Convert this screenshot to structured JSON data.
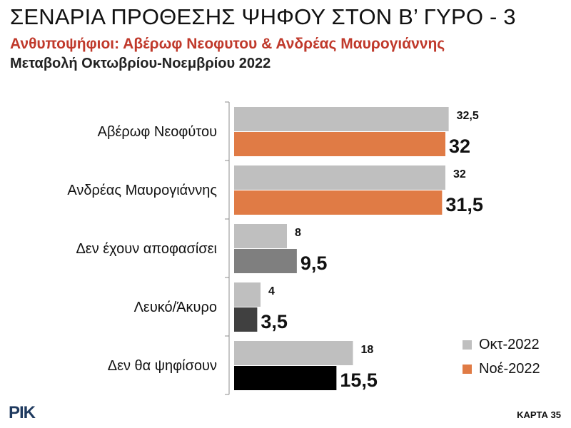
{
  "header": {
    "title": "ΣΕΝΑΡΙΑ ΠΡΟΘΕΣΗΣ ΨΗΦΟΥ ΣΤΟΝ Β’ ΓΥΡΟ - 3",
    "subtitle": "Ανθυποψήφιοι: Αβέρωφ Νεοφυτου & Ανδρέας Μαυρογιάννης",
    "subtitle2": "Μεταβολή Οκτωβρίου-Νοεμβρίου 2022"
  },
  "chart_data": {
    "type": "bar",
    "orientation": "horizontal",
    "categories": [
      "Αβέρωφ Νεοφύτου",
      "Ανδρέας Μαυρογιάννης",
      "Δεν έχουν αποφασίσει",
      "Λευκό/Άκυρο",
      "Δεν θα ψηφίσουν"
    ],
    "series": [
      {
        "name": "Οκτ-2022",
        "values": [
          32.5,
          32,
          8,
          4,
          18
        ],
        "labels": [
          "32,5",
          "32",
          "8",
          "4",
          "18"
        ],
        "color": "#bfbfbf"
      },
      {
        "name": "Νοέ-2022",
        "values": [
          32,
          31.5,
          9.5,
          3.5,
          15.5
        ],
        "labels": [
          "32",
          "31,5",
          "9,5",
          "3,5",
          "15,5"
        ],
        "color": "#e07b45",
        "category_colors": [
          "#e07b45",
          "#e07b45",
          "#7f7f7f",
          "#404040",
          "#000000"
        ]
      }
    ],
    "xlim": [
      0,
      40
    ],
    "grid": false,
    "legend": "bottom-right"
  },
  "legend": {
    "items": [
      {
        "label": "Οκτ-2022",
        "color": "#bfbfbf"
      },
      {
        "label": "Νοέ-2022",
        "color": "#e07b45"
      }
    ]
  },
  "footer": {
    "logo": "ΡΙΚ",
    "card": "ΚΑΡΤΑ 35"
  }
}
